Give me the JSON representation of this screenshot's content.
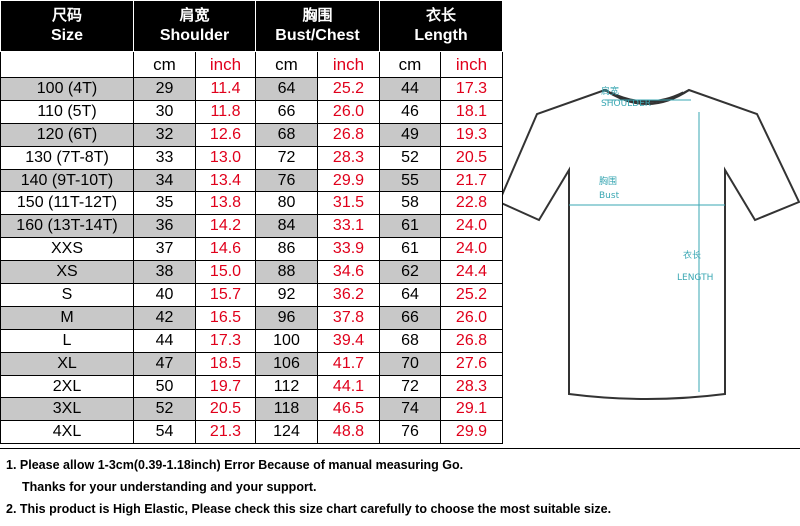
{
  "headers": [
    {
      "zh": "尺码",
      "en": "Size"
    },
    {
      "zh": "肩宽",
      "en": "Shoulder"
    },
    {
      "zh": "胸围",
      "en": "Bust/Chest"
    },
    {
      "zh": "衣长",
      "en": "Length"
    }
  ],
  "units": {
    "cm": "cm",
    "inch": "inch"
  },
  "rows": [
    [
      "100   (4T)",
      "29",
      "11.4",
      "64",
      "25.2",
      "44",
      "17.3"
    ],
    [
      "110   (5T)",
      "30",
      "11.8",
      "66",
      "26.0",
      "46",
      "18.1"
    ],
    [
      "120   (6T)",
      "32",
      "12.6",
      "68",
      "26.8",
      "49",
      "19.3"
    ],
    [
      "130 (7T-8T)",
      "33",
      "13.0",
      "72",
      "28.3",
      "52",
      "20.5"
    ],
    [
      "140 (9T-10T)",
      "34",
      "13.4",
      "76",
      "29.9",
      "55",
      "21.7"
    ],
    [
      "150 (11T-12T)",
      "35",
      "13.8",
      "80",
      "31.5",
      "58",
      "22.8"
    ],
    [
      "160 (13T-14T)",
      "36",
      "14.2",
      "84",
      "33.1",
      "61",
      "24.0"
    ],
    [
      "XXS",
      "37",
      "14.6",
      "86",
      "33.9",
      "61",
      "24.0"
    ],
    [
      "XS",
      "38",
      "15.0",
      "88",
      "34.6",
      "62",
      "24.4"
    ],
    [
      "S",
      "40",
      "15.7",
      "92",
      "36.2",
      "64",
      "25.2"
    ],
    [
      "M",
      "42",
      "16.5",
      "96",
      "37.8",
      "66",
      "26.0"
    ],
    [
      "L",
      "44",
      "17.3",
      "100",
      "39.4",
      "68",
      "26.8"
    ],
    [
      "XL",
      "47",
      "18.5",
      "106",
      "41.7",
      "70",
      "27.6"
    ],
    [
      "2XL",
      "50",
      "19.7",
      "112",
      "44.1",
      "72",
      "28.3"
    ],
    [
      "3XL",
      "52",
      "20.5",
      "118",
      "46.5",
      "74",
      "29.1"
    ],
    [
      "4XL",
      "54",
      "21.3",
      "124",
      "48.8",
      "76",
      "29.9"
    ]
  ],
  "diagram": {
    "shoulder_zh": "肩宽",
    "shoulder_en": "SHOULDER",
    "bust_zh": "胸围",
    "bust_en": "Bust",
    "length_zh": "衣长",
    "length_en": "LENGTH",
    "accent_color": "#3aa7b3"
  },
  "notes": {
    "line1": "1. Please allow 1-3cm(0.39-1.18inch) Error Because of manual measuring Go.",
    "line1b": "Thanks for your understanding  and your support.",
    "line2": "2. This product is High Elastic, Please check this size chart carefully to choose the most suitable size."
  },
  "colors": {
    "header_bg": "#000000",
    "shade": "#c8c8c8",
    "inch_text": "#e0001b"
  }
}
